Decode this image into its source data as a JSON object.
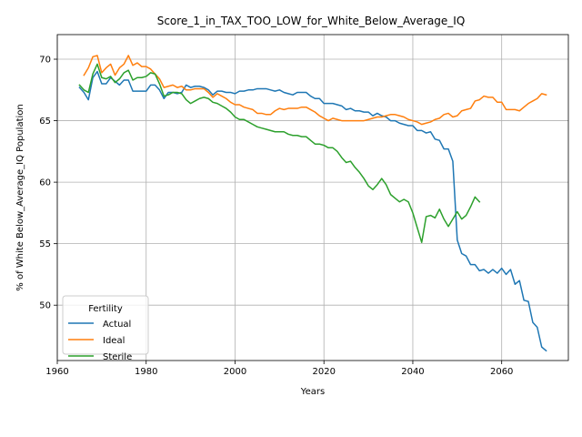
{
  "chart_data": {
    "type": "line",
    "title": "Score_1_in_TAX_TOO_LOW_for_White_Below_Average_IQ",
    "xlabel": "Years",
    "ylabel": "% of White Below_Average_IQ Population",
    "xlim": [
      1960,
      2075
    ],
    "ylim": [
      45.5,
      72
    ],
    "xticks": [
      1960,
      1980,
      2000,
      2020,
      2040,
      2060
    ],
    "yticks": [
      50,
      55,
      60,
      65,
      70
    ],
    "grid": true,
    "legend": {
      "title": "Fertility",
      "position": "lower-left"
    },
    "series": [
      {
        "name": "Actual",
        "color": "#1f77b4",
        "points": [
          [
            1965,
            67.7
          ],
          [
            1966,
            67.3
          ],
          [
            1967,
            66.7
          ],
          [
            1968,
            68.5
          ],
          [
            1969,
            69.0
          ],
          [
            1970,
            68.0
          ],
          [
            1971,
            68.0
          ],
          [
            1972,
            68.5
          ],
          [
            1973,
            68.2
          ],
          [
            1974,
            67.9
          ],
          [
            1975,
            68.3
          ],
          [
            1976,
            68.3
          ],
          [
            1977,
            67.4
          ],
          [
            1978,
            67.4
          ],
          [
            1979,
            67.4
          ],
          [
            1980,
            67.4
          ],
          [
            1981,
            67.9
          ],
          [
            1982,
            67.9
          ],
          [
            1983,
            67.5
          ],
          [
            1984,
            66.8
          ],
          [
            1985,
            67.3
          ],
          [
            1986,
            67.3
          ],
          [
            1987,
            67.2
          ],
          [
            1988,
            67.3
          ],
          [
            1989,
            67.9
          ],
          [
            1990,
            67.7
          ],
          [
            1991,
            67.8
          ],
          [
            1992,
            67.8
          ],
          [
            1993,
            67.7
          ],
          [
            1994,
            67.5
          ],
          [
            1995,
            67.1
          ],
          [
            1996,
            67.4
          ],
          [
            1997,
            67.4
          ],
          [
            1998,
            67.3
          ],
          [
            1999,
            67.3
          ],
          [
            2000,
            67.2
          ],
          [
            2001,
            67.4
          ],
          [
            2002,
            67.4
          ],
          [
            2003,
            67.5
          ],
          [
            2004,
            67.5
          ],
          [
            2005,
            67.6
          ],
          [
            2006,
            67.6
          ],
          [
            2007,
            67.6
          ],
          [
            2008,
            67.5
          ],
          [
            2009,
            67.4
          ],
          [
            2010,
            67.5
          ],
          [
            2011,
            67.3
          ],
          [
            2012,
            67.2
          ],
          [
            2013,
            67.1
          ],
          [
            2014,
            67.3
          ],
          [
            2015,
            67.3
          ],
          [
            2016,
            67.3
          ],
          [
            2017,
            67.0
          ],
          [
            2018,
            66.8
          ],
          [
            2019,
            66.8
          ],
          [
            2020,
            66.4
          ],
          [
            2021,
            66.4
          ],
          [
            2022,
            66.4
          ],
          [
            2023,
            66.3
          ],
          [
            2024,
            66.2
          ],
          [
            2025,
            65.9
          ],
          [
            2026,
            66.0
          ],
          [
            2027,
            65.8
          ],
          [
            2028,
            65.8
          ],
          [
            2029,
            65.7
          ],
          [
            2030,
            65.7
          ],
          [
            2031,
            65.4
          ],
          [
            2032,
            65.6
          ],
          [
            2033,
            65.4
          ],
          [
            2034,
            65.3
          ],
          [
            2035,
            65.0
          ],
          [
            2036,
            65.0
          ],
          [
            2037,
            64.8
          ],
          [
            2038,
            64.7
          ],
          [
            2039,
            64.6
          ],
          [
            2040,
            64.6
          ],
          [
            2041,
            64.2
          ],
          [
            2042,
            64.2
          ],
          [
            2043,
            64.0
          ],
          [
            2044,
            64.1
          ],
          [
            2045,
            63.5
          ],
          [
            2046,
            63.4
          ],
          [
            2047,
            62.7
          ],
          [
            2048,
            62.7
          ],
          [
            2049,
            61.7
          ],
          [
            2050,
            55.3
          ],
          [
            2051,
            54.2
          ],
          [
            2052,
            54.0
          ],
          [
            2053,
            53.3
          ],
          [
            2054,
            53.3
          ],
          [
            2055,
            52.8
          ],
          [
            2056,
            52.9
          ],
          [
            2057,
            52.6
          ],
          [
            2058,
            52.9
          ],
          [
            2059,
            52.6
          ],
          [
            2060,
            53.0
          ],
          [
            2061,
            52.5
          ],
          [
            2062,
            52.9
          ],
          [
            2063,
            51.7
          ],
          [
            2064,
            52.0
          ],
          [
            2065,
            50.4
          ],
          [
            2066,
            50.3
          ],
          [
            2067,
            48.6
          ],
          [
            2068,
            48.2
          ],
          [
            2069,
            46.6
          ],
          [
            2070,
            46.3
          ]
        ]
      },
      {
        "name": "Ideal",
        "color": "#ff7f0e",
        "points": [
          [
            1966,
            68.7
          ],
          [
            1967,
            69.3
          ],
          [
            1968,
            70.2
          ],
          [
            1969,
            70.3
          ],
          [
            1970,
            68.9
          ],
          [
            1971,
            69.3
          ],
          [
            1972,
            69.6
          ],
          [
            1973,
            68.7
          ],
          [
            1974,
            69.3
          ],
          [
            1975,
            69.6
          ],
          [
            1976,
            70.3
          ],
          [
            1977,
            69.5
          ],
          [
            1978,
            69.7
          ],
          [
            1979,
            69.4
          ],
          [
            1980,
            69.4
          ],
          [
            1981,
            69.2
          ],
          [
            1982,
            68.8
          ],
          [
            1983,
            68.4
          ],
          [
            1984,
            67.7
          ],
          [
            1985,
            67.8
          ],
          [
            1986,
            67.9
          ],
          [
            1987,
            67.7
          ],
          [
            1988,
            67.8
          ],
          [
            1989,
            67.5
          ],
          [
            1990,
            67.5
          ],
          [
            1991,
            67.6
          ],
          [
            1992,
            67.6
          ],
          [
            1993,
            67.6
          ],
          [
            1994,
            67.3
          ],
          [
            1995,
            66.9
          ],
          [
            1996,
            67.2
          ],
          [
            1997,
            67.0
          ],
          [
            1998,
            66.8
          ],
          [
            1999,
            66.5
          ],
          [
            2000,
            66.3
          ],
          [
            2001,
            66.3
          ],
          [
            2002,
            66.1
          ],
          [
            2003,
            66.0
          ],
          [
            2004,
            65.9
          ],
          [
            2005,
            65.6
          ],
          [
            2006,
            65.6
          ],
          [
            2007,
            65.5
          ],
          [
            2008,
            65.5
          ],
          [
            2009,
            65.8
          ],
          [
            2010,
            66.0
          ],
          [
            2011,
            65.9
          ],
          [
            2012,
            66.0
          ],
          [
            2013,
            66.0
          ],
          [
            2014,
            66.0
          ],
          [
            2015,
            66.1
          ],
          [
            2016,
            66.1
          ],
          [
            2017,
            65.9
          ],
          [
            2018,
            65.7
          ],
          [
            2019,
            65.4
          ],
          [
            2020,
            65.2
          ],
          [
            2021,
            65.0
          ],
          [
            2022,
            65.2
          ],
          [
            2023,
            65.1
          ],
          [
            2024,
            65.0
          ],
          [
            2025,
            65.0
          ],
          [
            2026,
            65.0
          ],
          [
            2027,
            65.0
          ],
          [
            2028,
            65.0
          ],
          [
            2029,
            65.0
          ],
          [
            2030,
            65.1
          ],
          [
            2031,
            65.2
          ],
          [
            2032,
            65.3
          ],
          [
            2033,
            65.3
          ],
          [
            2034,
            65.4
          ],
          [
            2035,
            65.5
          ],
          [
            2036,
            65.5
          ],
          [
            2037,
            65.4
          ],
          [
            2038,
            65.3
          ],
          [
            2039,
            65.1
          ],
          [
            2040,
            65.0
          ],
          [
            2041,
            64.9
          ],
          [
            2042,
            64.7
          ],
          [
            2043,
            64.8
          ],
          [
            2044,
            64.9
          ],
          [
            2045,
            65.1
          ],
          [
            2046,
            65.2
          ],
          [
            2047,
            65.5
          ],
          [
            2048,
            65.6
          ],
          [
            2049,
            65.3
          ],
          [
            2050,
            65.4
          ],
          [
            2051,
            65.8
          ],
          [
            2052,
            65.9
          ],
          [
            2053,
            66.0
          ],
          [
            2054,
            66.6
          ],
          [
            2055,
            66.7
          ],
          [
            2056,
            67.0
          ],
          [
            2057,
            66.9
          ],
          [
            2058,
            66.9
          ],
          [
            2059,
            66.5
          ],
          [
            2060,
            66.5
          ],
          [
            2061,
            65.9
          ],
          [
            2062,
            65.9
          ],
          [
            2063,
            65.9
          ],
          [
            2064,
            65.8
          ],
          [
            2065,
            66.1
          ],
          [
            2066,
            66.4
          ],
          [
            2067,
            66.6
          ],
          [
            2068,
            66.8
          ],
          [
            2069,
            67.2
          ],
          [
            2070,
            67.1
          ]
        ]
      },
      {
        "name": "Sterile",
        "color": "#2ca02c",
        "points": [
          [
            1965,
            67.9
          ],
          [
            1966,
            67.5
          ],
          [
            1967,
            67.3
          ],
          [
            1968,
            68.8
          ],
          [
            1969,
            69.6
          ],
          [
            1970,
            68.5
          ],
          [
            1971,
            68.4
          ],
          [
            1972,
            68.6
          ],
          [
            1973,
            68.1
          ],
          [
            1974,
            68.4
          ],
          [
            1975,
            68.9
          ],
          [
            1976,
            69.1
          ],
          [
            1977,
            68.3
          ],
          [
            1978,
            68.5
          ],
          [
            1979,
            68.5
          ],
          [
            1980,
            68.6
          ],
          [
            1981,
            68.9
          ],
          [
            1982,
            68.8
          ],
          [
            1983,
            68.0
          ],
          [
            1984,
            67.0
          ],
          [
            1985,
            67.1
          ],
          [
            1986,
            67.3
          ],
          [
            1987,
            67.3
          ],
          [
            1988,
            67.2
          ],
          [
            1989,
            66.7
          ],
          [
            1990,
            66.4
          ],
          [
            1991,
            66.6
          ],
          [
            1992,
            66.8
          ],
          [
            1993,
            66.9
          ],
          [
            1994,
            66.8
          ],
          [
            1995,
            66.5
          ],
          [
            1996,
            66.4
          ],
          [
            1997,
            66.2
          ],
          [
            1998,
            66.0
          ],
          [
            1999,
            65.7
          ],
          [
            2000,
            65.3
          ],
          [
            2001,
            65.1
          ],
          [
            2002,
            65.1
          ],
          [
            2003,
            64.9
          ],
          [
            2004,
            64.7
          ],
          [
            2005,
            64.5
          ],
          [
            2006,
            64.4
          ],
          [
            2007,
            64.3
          ],
          [
            2008,
            64.2
          ],
          [
            2009,
            64.1
          ],
          [
            2010,
            64.1
          ],
          [
            2011,
            64.1
          ],
          [
            2012,
            63.9
          ],
          [
            2013,
            63.8
          ],
          [
            2014,
            63.8
          ],
          [
            2015,
            63.7
          ],
          [
            2016,
            63.7
          ],
          [
            2017,
            63.4
          ],
          [
            2018,
            63.1
          ],
          [
            2019,
            63.1
          ],
          [
            2020,
            63.0
          ],
          [
            2021,
            62.8
          ],
          [
            2022,
            62.8
          ],
          [
            2023,
            62.5
          ],
          [
            2024,
            62.0
          ],
          [
            2025,
            61.6
          ],
          [
            2026,
            61.7
          ],
          [
            2027,
            61.2
          ],
          [
            2028,
            60.8
          ],
          [
            2029,
            60.3
          ],
          [
            2030,
            59.7
          ],
          [
            2031,
            59.4
          ],
          [
            2032,
            59.8
          ],
          [
            2033,
            60.3
          ],
          [
            2034,
            59.8
          ],
          [
            2035,
            59.0
          ],
          [
            2036,
            58.7
          ],
          [
            2037,
            58.4
          ],
          [
            2038,
            58.6
          ],
          [
            2039,
            58.4
          ],
          [
            2040,
            57.5
          ],
          [
            2041,
            56.3
          ],
          [
            2042,
            55.1
          ],
          [
            2043,
            57.2
          ],
          [
            2044,
            57.3
          ],
          [
            2045,
            57.1
          ],
          [
            2046,
            57.8
          ],
          [
            2047,
            57.0
          ],
          [
            2048,
            56.4
          ],
          [
            2049,
            57.0
          ],
          [
            2050,
            57.6
          ],
          [
            2051,
            57.0
          ],
          [
            2052,
            57.3
          ],
          [
            2053,
            58.0
          ],
          [
            2054,
            58.8
          ],
          [
            2055,
            58.4
          ]
        ]
      }
    ]
  }
}
